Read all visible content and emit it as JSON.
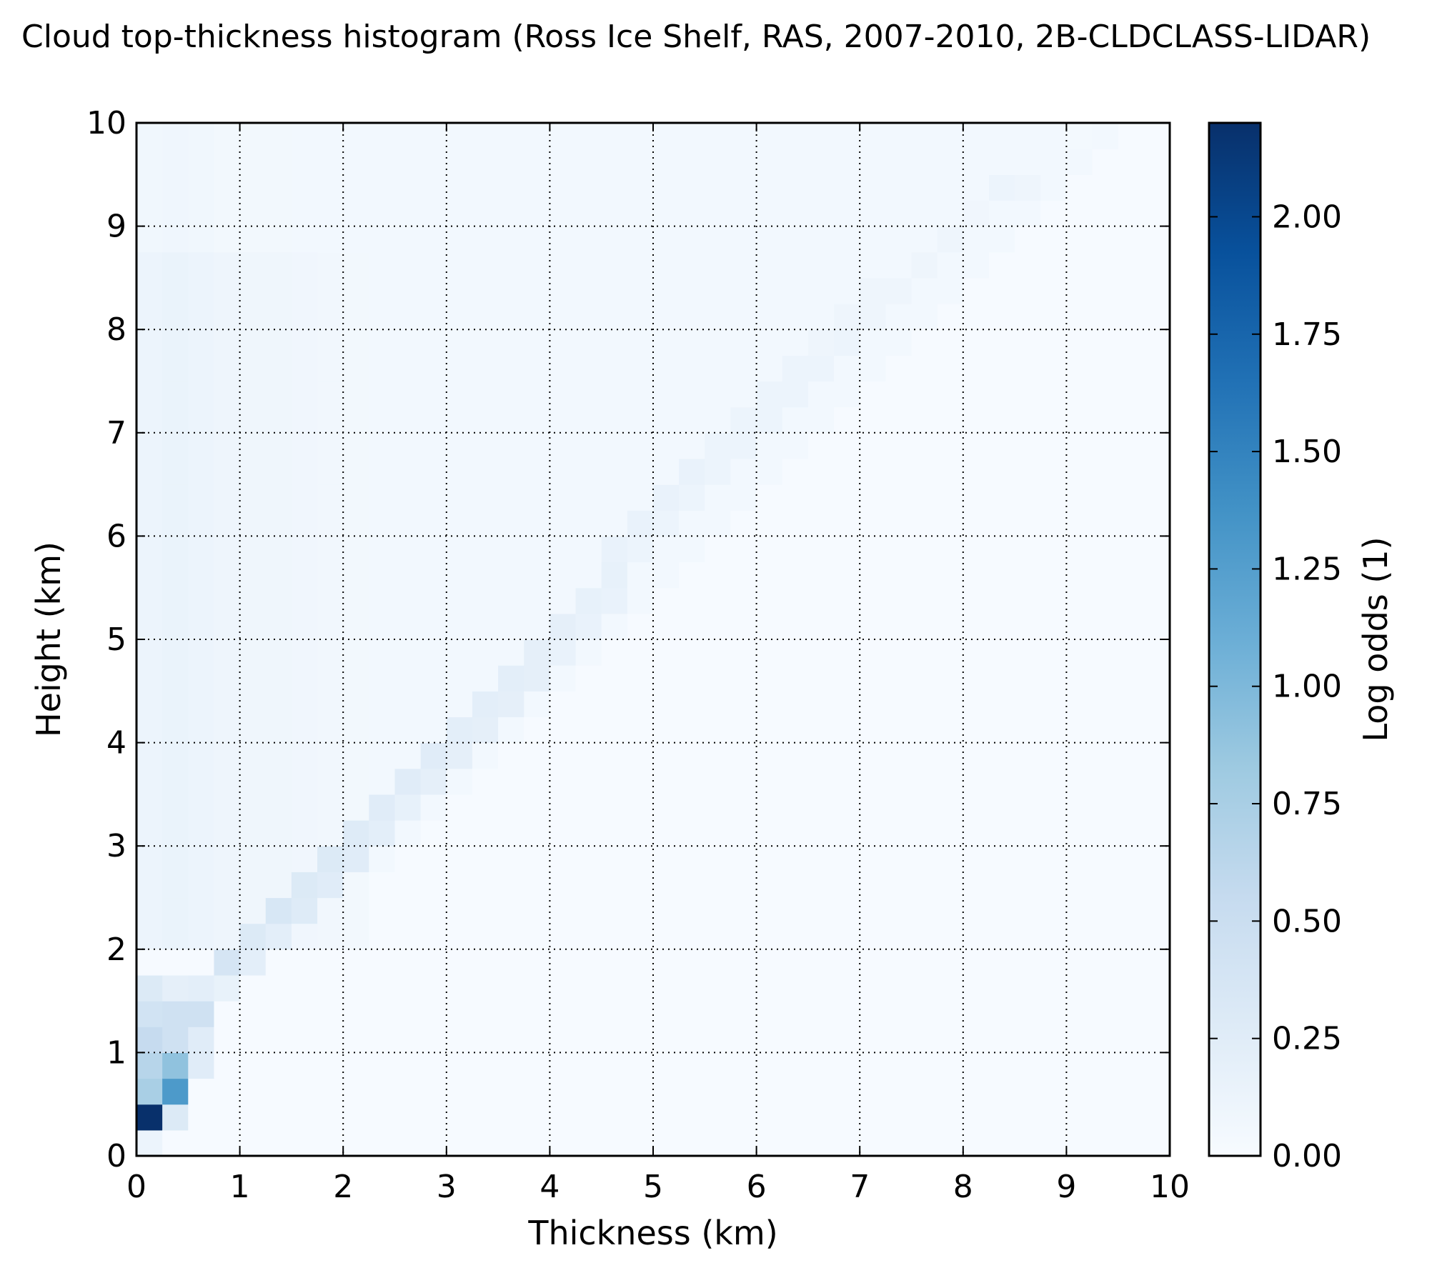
{
  "chart_data": {
    "type": "heatmap",
    "title": "Cloud top-thickness histogram (Ross Ice Shelf, RAS, 2007-2010, 2B-CLDCLASS-LIDAR)",
    "xlabel": "Thickness (km)",
    "ylabel": "Height (km)",
    "colorbar_label": "Log odds (1)",
    "colormap": "Blues",
    "colormap_stops": [
      "#f7fbff",
      "#deebf7",
      "#c6dbef",
      "#9ecae1",
      "#6baed6",
      "#4292c6",
      "#2171b5",
      "#08519c",
      "#08306b"
    ],
    "xlim": [
      0,
      10
    ],
    "ylim": [
      0,
      10
    ],
    "clim": [
      0,
      2.2
    ],
    "grid": true,
    "grid_style": "dotted",
    "xticks": [
      "0",
      "1",
      "2",
      "3",
      "4",
      "5",
      "6",
      "7",
      "8",
      "9",
      "10"
    ],
    "yticks": [
      "0",
      "1",
      "2",
      "3",
      "4",
      "5",
      "6",
      "7",
      "8",
      "9",
      "10"
    ],
    "colorbar_ticks": [
      "0.00",
      "0.25",
      "0.50",
      "0.75",
      "1.00",
      "1.25",
      "1.50",
      "1.75",
      "2.00"
    ],
    "bin_width_km": 0.25,
    "n_bins": 40,
    "diagonal_ridge": [
      [
        0.0,
        0.0,
        0.12
      ],
      [
        0.0,
        0.25,
        2.2
      ],
      [
        0.25,
        0.25,
        0.3
      ],
      [
        0.25,
        0.5,
        1.3
      ],
      [
        0.0,
        0.5,
        0.75
      ],
      [
        0.0,
        0.75,
        0.65
      ],
      [
        0.25,
        0.75,
        0.9
      ],
      [
        0.5,
        0.75,
        0.25
      ],
      [
        0.0,
        1.0,
        0.55
      ],
      [
        0.25,
        1.0,
        0.45
      ],
      [
        0.5,
        1.0,
        0.25
      ],
      [
        0.0,
        1.25,
        0.42
      ],
      [
        0.25,
        1.25,
        0.45
      ],
      [
        0.5,
        1.25,
        0.45
      ],
      [
        0.0,
        1.5,
        0.3
      ],
      [
        0.25,
        1.5,
        0.2
      ],
      [
        0.5,
        1.5,
        0.22
      ],
      [
        0.75,
        1.5,
        0.16
      ],
      [
        0.75,
        1.75,
        0.38
      ],
      [
        1.0,
        1.75,
        0.22
      ],
      [
        1.0,
        2.0,
        0.3
      ],
      [
        1.25,
        2.0,
        0.22
      ],
      [
        1.25,
        2.25,
        0.35
      ],
      [
        1.5,
        2.25,
        0.28
      ],
      [
        1.5,
        2.5,
        0.3
      ],
      [
        1.75,
        2.5,
        0.25
      ],
      [
        1.75,
        2.75,
        0.3
      ],
      [
        2.0,
        2.75,
        0.25
      ],
      [
        2.0,
        3.0,
        0.28
      ],
      [
        2.25,
        3.0,
        0.22
      ],
      [
        2.25,
        3.25,
        0.25
      ],
      [
        2.5,
        3.25,
        0.18
      ],
      [
        2.5,
        3.5,
        0.25
      ],
      [
        2.75,
        3.5,
        0.2
      ],
      [
        2.75,
        3.75,
        0.25
      ],
      [
        3.0,
        3.75,
        0.2
      ],
      [
        3.0,
        4.0,
        0.22
      ],
      [
        3.25,
        4.0,
        0.2
      ],
      [
        3.25,
        4.25,
        0.22
      ],
      [
        3.5,
        4.25,
        0.2
      ],
      [
        3.5,
        4.5,
        0.22
      ],
      [
        3.75,
        4.5,
        0.2
      ],
      [
        3.75,
        4.75,
        0.2
      ],
      [
        4.0,
        4.75,
        0.15
      ],
      [
        4.0,
        5.0,
        0.2
      ],
      [
        4.25,
        5.0,
        0.15
      ],
      [
        4.25,
        5.25,
        0.18
      ],
      [
        4.5,
        5.25,
        0.15
      ],
      [
        4.5,
        5.5,
        0.18
      ],
      [
        4.5,
        5.75,
        0.15
      ],
      [
        4.75,
        5.75,
        0.12
      ],
      [
        4.75,
        6.0,
        0.15
      ],
      [
        5.0,
        6.0,
        0.12
      ],
      [
        5.0,
        6.25,
        0.15
      ],
      [
        5.25,
        6.25,
        0.12
      ],
      [
        5.25,
        6.5,
        0.15
      ],
      [
        5.5,
        6.5,
        0.12
      ],
      [
        5.5,
        6.75,
        0.12
      ],
      [
        5.75,
        6.75,
        0.12
      ],
      [
        5.75,
        7.0,
        0.12
      ],
      [
        6.0,
        7.0,
        0.12
      ],
      [
        6.0,
        7.25,
        0.12
      ],
      [
        6.25,
        7.25,
        0.12
      ],
      [
        6.25,
        7.5,
        0.12
      ],
      [
        6.5,
        7.5,
        0.12
      ],
      [
        6.5,
        7.75,
        0.1
      ],
      [
        6.75,
        7.75,
        0.12
      ],
      [
        6.75,
        8.0,
        0.1
      ],
      [
        7.0,
        8.0,
        0.1
      ],
      [
        7.0,
        8.25,
        0.1
      ],
      [
        7.25,
        8.25,
        0.1
      ],
      [
        7.5,
        8.5,
        0.1
      ],
      [
        7.75,
        8.75,
        0.1
      ],
      [
        8.0,
        9.0,
        0.08
      ],
      [
        8.25,
        9.25,
        0.12
      ],
      [
        8.5,
        9.25,
        0.1
      ],
      [
        8.75,
        9.5,
        0.05
      ],
      [
        9.0,
        9.75,
        0.04
      ]
    ],
    "thin_layer_band": {
      "note_values": "log odds for thickness bins 0-2 km at heights 2-10 km",
      "columns": [
        {
          "x": 0.0,
          "value": 0.12
        },
        {
          "x": 0.25,
          "value": 0.14
        },
        {
          "x": 0.5,
          "value": 0.12
        },
        {
          "x": 0.75,
          "value": 0.1
        },
        {
          "x": 1.0,
          "value": 0.09
        },
        {
          "x": 1.25,
          "value": 0.09
        },
        {
          "x": 1.5,
          "value": 0.08
        },
        {
          "x": 1.75,
          "value": 0.07
        },
        {
          "x": 2.0,
          "value": 0.06
        }
      ]
    }
  }
}
